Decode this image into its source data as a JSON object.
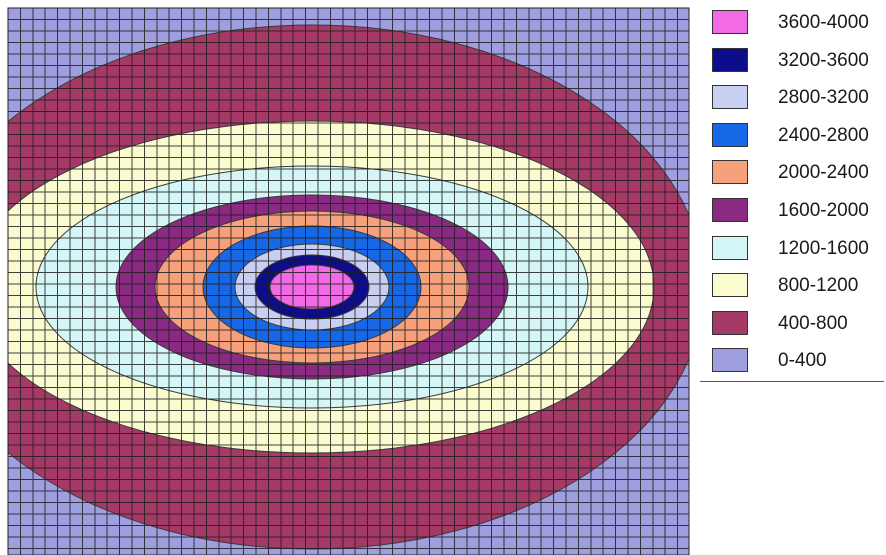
{
  "chart_data": {
    "type": "heatmap",
    "title": "",
    "xlabel": "",
    "ylabel": "",
    "grid": true,
    "legend_placement": "right",
    "contour_levels": [
      {
        "label": "0-400",
        "min": 0,
        "max": 400,
        "color": "#9f9fe0"
      },
      {
        "label": "400-800",
        "min": 400,
        "max": 800,
        "color": "#a53a66"
      },
      {
        "label": "800-1200",
        "min": 800,
        "max": 1200,
        "color": "#fbfbd0"
      },
      {
        "label": "1200-1600",
        "min": 1200,
        "max": 1600,
        "color": "#d4f6f6"
      },
      {
        "label": "1600-2000",
        "min": 1600,
        "max": 2000,
        "color": "#8a2a82"
      },
      {
        "label": "2000-2400",
        "min": 2000,
        "max": 2400,
        "color": "#f7a07c"
      },
      {
        "label": "2400-2800",
        "min": 2400,
        "max": 2800,
        "color": "#1768e6"
      },
      {
        "label": "2800-3200",
        "min": 2800,
        "max": 3200,
        "color": "#c9cff0"
      },
      {
        "label": "3200-3600",
        "min": 3200,
        "max": 3600,
        "color": "#0d0d8c"
      },
      {
        "label": "3600-4000",
        "min": 3600,
        "max": 4000,
        "color": "#f26ae6"
      }
    ]
  },
  "legend": {
    "items": [
      {
        "label": "3600-4000",
        "color": "#f26ae6"
      },
      {
        "label": "3200-3600",
        "color": "#0d0d8c"
      },
      {
        "label": "2800-3200",
        "color": "#c9cff0"
      },
      {
        "label": "2400-2800",
        "color": "#1768e6"
      },
      {
        "label": "2000-2400",
        "color": "#f7a07c"
      },
      {
        "label": "1600-2000",
        "color": "#8a2a82"
      },
      {
        "label": "1200-1600",
        "color": "#d4f6f6"
      },
      {
        "label": "800-1200",
        "color": "#fbfbd0"
      },
      {
        "label": "400-800",
        "color": "#a53a66"
      },
      {
        "label": "0-400",
        "color": "#9f9fe0"
      }
    ]
  }
}
